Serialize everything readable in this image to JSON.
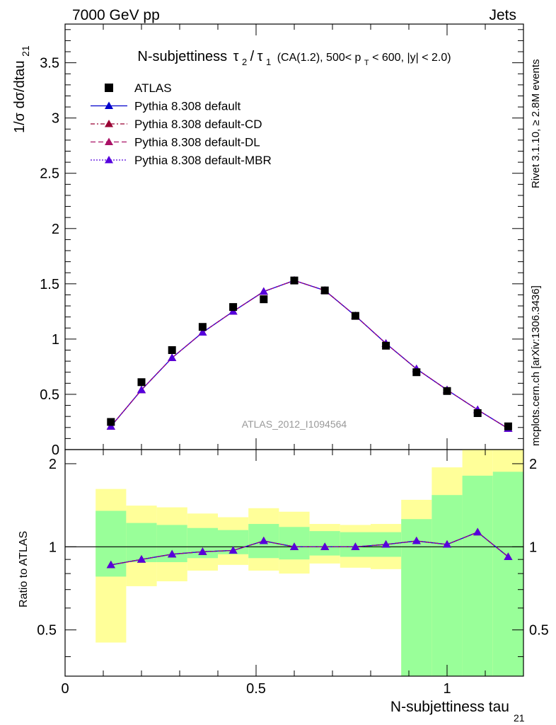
{
  "header": {
    "left": "7000 GeV pp",
    "right": "Jets"
  },
  "side_labels": {
    "rivet": "Rivet 3.1.10, ≥ 2.8M events",
    "mcplots": "mcplots.cern.ch [arXiv:1306.3436]"
  },
  "chart_data": {
    "type": "scatter",
    "title": {
      "main": "N-subjettiness",
      "tau2": "τ",
      "tau2_sub": "2",
      "slash": "/",
      "tau1": "τ",
      "tau1_sub": "1",
      "cuts_a": "(CA(1.2), 500< p",
      "cuts_sub": "T",
      "cuts_b": " < 600, |y| < 2.0)"
    },
    "watermark": "ATLAS_2012_I1094564",
    "xlabel": "N-subjettiness tau",
    "xlabel_sub": "21",
    "ylabel": "1/σ dσ/dtau",
    "ylabel_sub": "21",
    "ratio_ylabel": "Ratio to ATLAS",
    "xlim": [
      0,
      1.2
    ],
    "ylim": [
      0,
      3.85
    ],
    "ratio_ylim": [
      0.34,
      2.25
    ],
    "x_ticks": [
      "0",
      "0.5",
      "1"
    ],
    "y_ticks": [
      "0",
      "0.5",
      "1",
      "1.5",
      "2",
      "2.5",
      "3",
      "3.5"
    ],
    "ratio_ticks": [
      "0.5",
      "1",
      "2"
    ],
    "bin_edges": [
      0.08,
      0.16,
      0.24,
      0.32,
      0.4,
      0.48,
      0.56,
      0.64,
      0.72,
      0.8,
      0.88,
      0.96,
      1.04,
      1.12,
      1.2
    ],
    "x": [
      0.12,
      0.2,
      0.28,
      0.36,
      0.44,
      0.52,
      0.6,
      0.68,
      0.76,
      0.84,
      0.92,
      1.0,
      1.08,
      1.16
    ],
    "data": {
      "name": "ATLAS",
      "values": [
        0.25,
        0.61,
        0.9,
        1.11,
        1.29,
        1.36,
        1.53,
        1.44,
        1.21,
        0.94,
        0.7,
        0.53,
        0.33,
        0.21
      ]
    },
    "series": [
      {
        "name": "Pythia 8.308 default",
        "color": "#0000cc",
        "values": [
          0.21,
          0.54,
          0.83,
          1.06,
          1.25,
          1.43,
          1.53,
          1.44,
          1.21,
          0.96,
          0.73,
          0.54,
          0.36,
          0.19
        ]
      },
      {
        "name": "Pythia 8.308 default-CD",
        "color": "#990033",
        "values": [
          0.21,
          0.54,
          0.83,
          1.06,
          1.25,
          1.43,
          1.53,
          1.44,
          1.21,
          0.96,
          0.73,
          0.54,
          0.36,
          0.19
        ]
      },
      {
        "name": "Pythia 8.308 default-DL",
        "color": "#aa1166",
        "values": [
          0.21,
          0.54,
          0.83,
          1.06,
          1.25,
          1.43,
          1.53,
          1.44,
          1.21,
          0.96,
          0.73,
          0.54,
          0.36,
          0.19
        ]
      },
      {
        "name": "Pythia 8.308 default-MBR",
        "color": "#5500dd",
        "values": [
          0.21,
          0.54,
          0.83,
          1.06,
          1.25,
          1.43,
          1.53,
          1.44,
          1.21,
          0.96,
          0.73,
          0.54,
          0.36,
          0.19
        ]
      }
    ],
    "ratio": [
      0.86,
      0.9,
      0.94,
      0.96,
      0.97,
      1.05,
      1.0,
      1.0,
      1.0,
      1.02,
      1.05,
      1.02,
      1.13,
      0.92
    ],
    "band_inner": [
      [
        0.78,
        1.35
      ],
      [
        0.88,
        1.22
      ],
      [
        0.88,
        1.2
      ],
      [
        0.91,
        1.17
      ],
      [
        0.94,
        1.15
      ],
      [
        0.91,
        1.21
      ],
      [
        0.9,
        1.18
      ],
      [
        0.93,
        1.14
      ],
      [
        0.92,
        1.13
      ],
      [
        0.92,
        1.13
      ],
      [
        0.34,
        1.26
      ],
      [
        0.34,
        1.54
      ],
      [
        0.34,
        1.81
      ],
      [
        0.34,
        1.87
      ]
    ],
    "band_outer": [
      [
        0.45,
        1.62
      ],
      [
        0.72,
        1.41
      ],
      [
        0.75,
        1.39
      ],
      [
        0.82,
        1.32
      ],
      [
        0.86,
        1.28
      ],
      [
        0.82,
        1.38
      ],
      [
        0.8,
        1.34
      ],
      [
        0.87,
        1.21
      ],
      [
        0.84,
        1.2
      ],
      [
        0.83,
        1.21
      ],
      [
        0.34,
        1.48
      ],
      [
        0.34,
        1.94
      ],
      [
        0.34,
        2.25
      ],
      [
        0.34,
        2.25
      ]
    ],
    "colors": {
      "band_inner": "#99ff99",
      "band_outer": "#ffff99",
      "data": "#000000",
      "watermark": "#999999",
      "side_text": "#888888"
    }
  }
}
